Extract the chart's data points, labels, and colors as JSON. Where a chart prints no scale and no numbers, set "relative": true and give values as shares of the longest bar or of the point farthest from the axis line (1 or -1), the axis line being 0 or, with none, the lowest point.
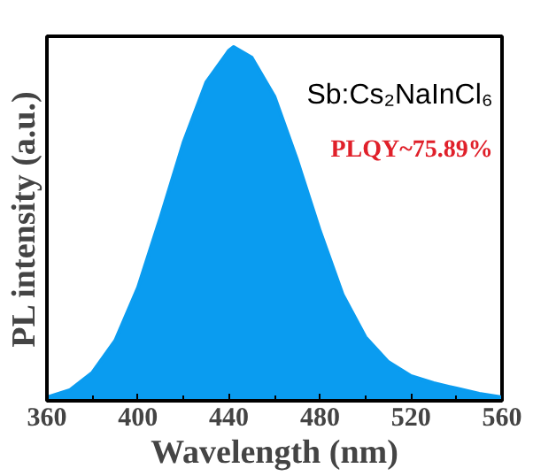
{
  "chart_data": {
    "type": "area",
    "relative": true,
    "xlabel": "Wavelength (nm)",
    "ylabel": "PL intensity (a.u.)",
    "annotations": [
      "Sb:Cs₂NaInCl₆",
      "PLQY~75.89%"
    ],
    "xlim": [
      360,
      560
    ],
    "xticks": [
      360,
      400,
      440,
      480,
      520,
      560
    ],
    "series": [
      {
        "color": "#0a9cf0",
        "x": [
          360,
          370,
          380,
          390,
          400,
          410,
          420,
          430,
          440,
          442,
          450,
          460,
          470,
          480,
          490,
          500,
          510,
          520,
          530,
          540,
          550,
          560
        ],
        "values": [
          0.01,
          0.03,
          0.08,
          0.17,
          0.32,
          0.52,
          0.73,
          0.9,
          0.99,
          1.0,
          0.97,
          0.86,
          0.68,
          0.48,
          0.3,
          0.18,
          0.11,
          0.07,
          0.05,
          0.035,
          0.02,
          0.01
        ]
      }
    ]
  }
}
